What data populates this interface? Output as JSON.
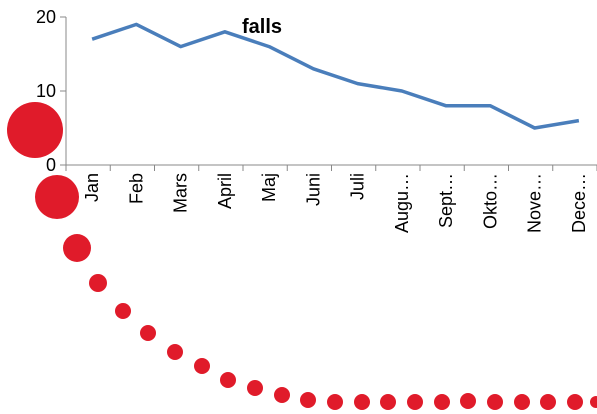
{
  "chart_data": {
    "type": "line",
    "title": "falls",
    "categories": [
      "Jan",
      "Feb",
      "Mars",
      "April",
      "Maj",
      "Juni",
      "Juli",
      "Augu…",
      "Sept…",
      "Okto…",
      "Nove…",
      "Dece…"
    ],
    "series": [
      {
        "name": "falls",
        "color": "#4a7ebb",
        "values": [
          17,
          19,
          16,
          18,
          16,
          13,
          11,
          10,
          8,
          8,
          5,
          6
        ]
      }
    ],
    "ylim": [
      0,
      20
    ],
    "yticks": [
      0,
      10,
      20
    ]
  }
}
